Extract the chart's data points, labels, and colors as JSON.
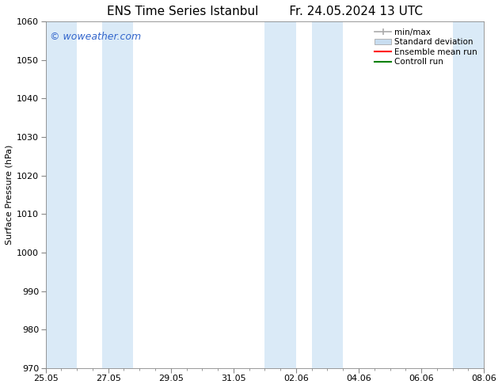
{
  "title_left": "ENS Time Series Istanbul",
  "title_right": "Fr. 24.05.2024 13 UTC",
  "ylabel": "Surface Pressure (hPa)",
  "ylim": [
    970,
    1060
  ],
  "yticks": [
    970,
    980,
    990,
    1000,
    1010,
    1020,
    1030,
    1040,
    1050,
    1060
  ],
  "xlim_start": 0,
  "xlim_end": 14,
  "xtick_labels": [
    "25.05",
    "27.05",
    "29.05",
    "31.05",
    "02.06",
    "04.06",
    "06.06",
    "08.06"
  ],
  "xtick_positions": [
    0,
    2,
    4,
    6,
    8,
    10,
    12,
    14
  ],
  "shaded_bands": [
    {
      "x_start": 0.0,
      "x_end": 1.0
    },
    {
      "x_start": 1.8,
      "x_end": 2.8
    },
    {
      "x_start": 7.0,
      "x_end": 8.0
    },
    {
      "x_start": 8.5,
      "x_end": 9.5
    },
    {
      "x_start": 13.0,
      "x_end": 14.0
    }
  ],
  "shade_color": "#daeaf7",
  "background_color": "#ffffff",
  "watermark_text": "© woweather.com",
  "watermark_color": "#3366cc",
  "legend_items": [
    {
      "label": "min/max",
      "color": "#aaaaaa",
      "type": "errorbar"
    },
    {
      "label": "Standard deviation",
      "color": "#c8ddf0",
      "type": "bar"
    },
    {
      "label": "Ensemble mean run",
      "color": "#ff0000",
      "type": "line"
    },
    {
      "label": "Controll run",
      "color": "#008000",
      "type": "line"
    }
  ],
  "font_size_title": 11,
  "font_size_axis": 8,
  "font_size_legend": 7.5,
  "font_size_watermark": 9,
  "spine_color": "#888888"
}
